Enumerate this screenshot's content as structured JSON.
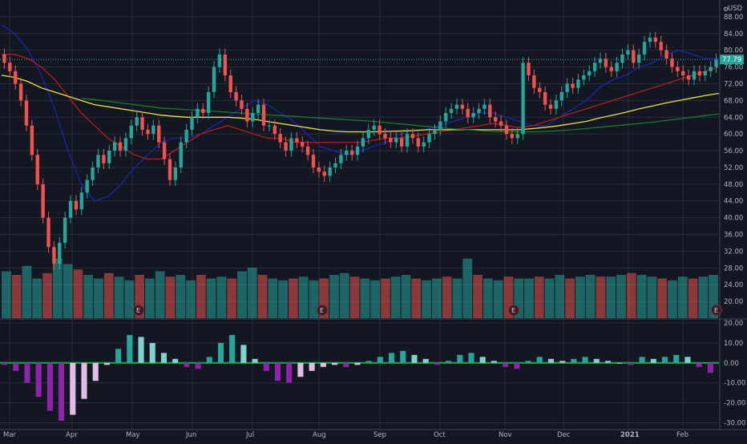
{
  "chart_data": [
    {
      "type": "candlestick",
      "currency": "USD",
      "x_labels": [
        "Mar",
        "Apr",
        "May",
        "Jun",
        "Jul",
        "Aug",
        "Sep",
        "Oct",
        "Nov",
        "Dec",
        "2021",
        "Feb"
      ],
      "ylim": [
        16,
        92
      ],
      "y_ticks": [
        "88.00",
        "84.00",
        "80.00",
        "76.00",
        "72.00",
        "68.00",
        "64.00",
        "60.00",
        "56.00",
        "52.00",
        "48.00",
        "44.00",
        "40.00",
        "36.00",
        "32.00",
        "28.00",
        "24.00",
        "20.00"
      ],
      "last_price": "77.79",
      "earnings_marker": "E",
      "close_series": [
        {
          "month": "Mar",
          "values": [
            77,
            75,
            72,
            68,
            62,
            55,
            48,
            40,
            33,
            29,
            34,
            40,
            44,
            42
          ]
        },
        {
          "month": "Apr",
          "values": [
            46,
            49,
            52,
            55,
            53,
            56,
            58,
            56,
            59,
            62,
            64,
            61
          ]
        },
        {
          "month": "May",
          "values": [
            60,
            62,
            58,
            54,
            49,
            52,
            58,
            61,
            64,
            66,
            65
          ]
        },
        {
          "month": "Jun",
          "values": [
            70,
            76,
            79,
            74,
            70,
            68,
            66,
            63,
            65,
            67,
            62
          ]
        },
        {
          "month": "Jul",
          "values": [
            62,
            60,
            58,
            56,
            59,
            58,
            57,
            55,
            52,
            51,
            50,
            52
          ]
        },
        {
          "month": "Aug",
          "values": [
            53,
            55,
            56,
            55,
            57,
            59,
            61,
            62,
            60,
            59,
            58
          ]
        },
        {
          "month": "Sep",
          "values": [
            59,
            57,
            60,
            59,
            57,
            58,
            60,
            61,
            63,
            65,
            66
          ]
        },
        {
          "month": "Oct",
          "values": [
            67,
            66,
            64,
            65,
            66,
            67,
            64,
            63,
            62,
            60,
            59
          ]
        },
        {
          "month": "Nov",
          "values": [
            60,
            77,
            74,
            71,
            70,
            67,
            66,
            68,
            70,
            72,
            71
          ]
        },
        {
          "month": "Dec",
          "values": [
            73,
            74,
            75,
            77,
            78,
            76,
            75,
            77,
            79,
            80,
            77
          ]
        },
        {
          "month": "2021",
          "values": [
            79,
            82,
            83,
            82,
            80,
            78,
            76,
            75,
            74,
            73,
            75
          ]
        },
        {
          "month": "Feb",
          "values": [
            74,
            75,
            76,
            77.79
          ]
        }
      ],
      "moving_averages": [
        {
          "color": "#1d23b4",
          "values": [
            86,
            84,
            80,
            74,
            66,
            56,
            48,
            44,
            45,
            48,
            52,
            55,
            58,
            59,
            59,
            60,
            62,
            64,
            66,
            68,
            67,
            65,
            63,
            60,
            57,
            56,
            55,
            56,
            57,
            58,
            60,
            61,
            61,
            62,
            63,
            64,
            65,
            65,
            64,
            63,
            62,
            62,
            64,
            66,
            68,
            71,
            73,
            74,
            76,
            77,
            79,
            80,
            79,
            78,
            78
          ]
        },
        {
          "color": "#b71c1c",
          "values": [
            79,
            79,
            78,
            76,
            73,
            69,
            65,
            62,
            59,
            57,
            55,
            54,
            54,
            56,
            58,
            60,
            61,
            62,
            61,
            60,
            59,
            59,
            58,
            58,
            58,
            58,
            58,
            58,
            58.5,
            59,
            59,
            59.5,
            60,
            60.5,
            61,
            61.5,
            62,
            62.5,
            62,
            61.5,
            62,
            63,
            64,
            65,
            66,
            67,
            68,
            69,
            70,
            71,
            72,
            73,
            74,
            75,
            76
          ]
        },
        {
          "color": "#f0e442",
          "values": [
            74,
            73.5,
            72.5,
            71,
            70,
            69,
            68,
            67,
            66.5,
            66,
            65.5,
            65,
            64.5,
            64.2,
            64,
            64,
            64,
            64,
            63.8,
            63.5,
            63,
            62.5,
            62,
            61.5,
            61,
            60.7,
            60.5,
            60.5,
            60.5,
            60.6,
            60.7,
            60.8,
            61,
            61,
            61,
            61,
            61,
            61,
            61,
            61,
            61.3,
            61.6,
            62,
            62.5,
            63,
            63.8,
            64.5,
            65.2,
            66,
            66.7,
            67.4,
            68,
            68.6,
            69.2,
            69.7
          ]
        },
        {
          "color": "#1b7a2c",
          "values": [
            null,
            null,
            null,
            null,
            null,
            null,
            68.5,
            68.2,
            67.8,
            67.4,
            67,
            66.6,
            66.2,
            66,
            65.8,
            65.6,
            65.4,
            65.2,
            65,
            64.8,
            64.6,
            64.4,
            64.2,
            64,
            63.8,
            63.6,
            63.4,
            63.2,
            63,
            62.7,
            62.4,
            62.1,
            61.8,
            61.5,
            61.2,
            61,
            60.8,
            60.6,
            60.5,
            60.5,
            60.5,
            60.6,
            60.8,
            61,
            61.3,
            61.6,
            61.9,
            62.2,
            62.5,
            62.8,
            63.2,
            63.6,
            64,
            64.4,
            64.8
          ]
        }
      ]
    },
    {
      "type": "bar",
      "name": "volume",
      "values": [
        26,
        24,
        29,
        22,
        25,
        33,
        30,
        27,
        24,
        22,
        25,
        23,
        21,
        24,
        22,
        26,
        23,
        24,
        21,
        24,
        22,
        23,
        22,
        26,
        28,
        24,
        22,
        21,
        22,
        23,
        21,
        22,
        24,
        25,
        23,
        22,
        21,
        22,
        23,
        24,
        22,
        21,
        22,
        23,
        22,
        33,
        24,
        22,
        21,
        23,
        22,
        22,
        23,
        22,
        24,
        22,
        23,
        24,
        23,
        23,
        24,
        25,
        24,
        23,
        22,
        21,
        23,
        22,
        23,
        24
      ]
    },
    {
      "type": "histogram",
      "name": "macd",
      "y_ticks": [
        "20.00",
        "10.00",
        "0.00",
        "-10.00",
        "-20.00",
        "-30.00"
      ],
      "ylim": [
        -33,
        22
      ],
      "values": [
        -1,
        -4,
        -10,
        -17,
        -24,
        -29,
        -26,
        -18,
        -9,
        -1,
        7,
        14,
        13,
        10,
        5,
        2,
        -2,
        -3,
        3,
        10,
        14,
        9,
        2,
        -4,
        -9,
        -10,
        -7,
        -4,
        -2,
        -1,
        -2,
        -1,
        1,
        3,
        5,
        6,
        4,
        2,
        -1,
        1,
        4,
        5,
        3,
        1,
        -2,
        -3,
        1,
        3,
        2,
        1,
        2,
        3,
        2,
        1,
        0,
        -1,
        3,
        2,
        3,
        4,
        3,
        -2,
        -5
      ]
    }
  ]
}
